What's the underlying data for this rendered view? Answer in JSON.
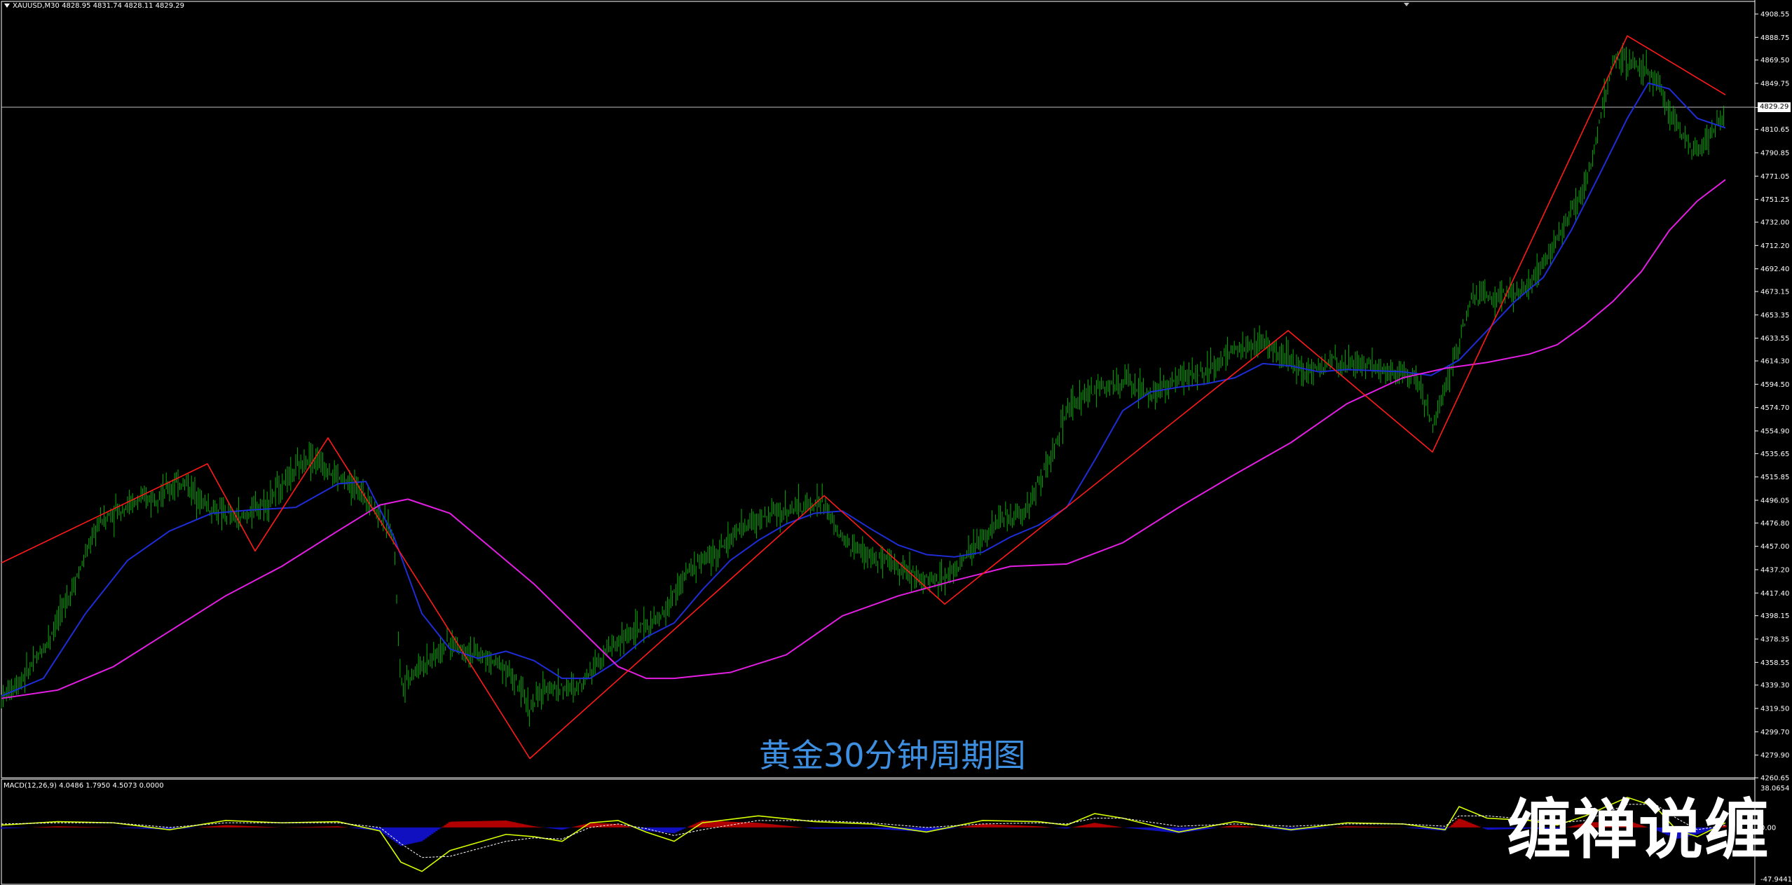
{
  "header": {
    "symbol_info": "XAUUSD,M30  4828.95 4831.74 4828.11 4829.29"
  },
  "macd_header": {
    "text": "MACD(12,26,9) 4.0486 1.7950 4.5073 0.0000"
  },
  "watermark": "黄金30分钟周期图",
  "brand": "缠禅说缠",
  "current_price": "4829.29",
  "macd_axis": {
    "top": "38.0654",
    "zero": "0.00",
    "bottom": "-47.9441"
  },
  "colors": {
    "background": "#000000",
    "candle_up": "#00b000",
    "candle_down": "#00b000",
    "ma_fast": "#1e2dd6",
    "ma_slow": "#e21ee2",
    "zigzag": "#ff1a1a",
    "macd_pos": "#b00000",
    "macd_neg": "#1010c0",
    "macd_line": "#d6ff00",
    "signal_line": "#ffffff"
  },
  "chart_data": {
    "type": "line",
    "title": "XAUUSD,M30",
    "y_ticks": [
      "4908.55",
      "4888.75",
      "4869.50",
      "4849.75",
      "4829.29",
      "4810.65",
      "4790.85",
      "4771.05",
      "4751.25",
      "4732.00",
      "4712.20",
      "4692.40",
      "4673.15",
      "4653.35",
      "4633.55",
      "4614.30",
      "4594.50",
      "4574.70",
      "4554.90",
      "4535.65",
      "4515.85",
      "4496.05",
      "4476.80",
      "4457.00",
      "4437.20",
      "4417.40",
      "4398.15",
      "4378.35",
      "4358.55",
      "4339.30",
      "4319.50",
      "4299.70",
      "4279.90",
      "4260.65"
    ],
    "ylim": [
      4260.65,
      4908.55
    ],
    "series": [
      {
        "name": "price",
        "x": [
          0,
          15,
          30,
          50,
          70,
          90,
          110,
          130,
          150,
          170,
          190,
          200,
          220,
          240,
          260,
          280,
          285,
          300,
          320,
          340,
          360,
          377,
          390,
          410,
          430,
          450,
          470,
          490,
          510,
          530,
          550,
          570,
          586,
          600,
          620,
          640,
          660,
          675,
          690,
          710,
          730,
          750,
          760,
          780,
          800,
          820,
          840,
          860,
          880,
          900,
          915,
          930,
          950,
          970,
          990,
          1010,
          1021,
          1035,
          1050,
          1070,
          1090,
          1110,
          1130,
          1150,
          1160,
          1175,
          1190,
          1200,
          1210,
          1230
        ],
        "values": [
          4328,
          4345,
          4370,
          4420,
          4478,
          4492,
          4500,
          4512,
          4488,
          4480,
          4495,
          4510,
          4533,
          4516,
          4500,
          4466,
          4340,
          4356,
          4375,
          4365,
          4355,
          4320,
          4338,
          4336,
          4368,
          4384,
          4395,
          4437,
          4452,
          4474,
          4485,
          4490,
          4495,
          4462,
          4448,
          4440,
          4428,
          4432,
          4450,
          4478,
          4486,
          4535,
          4572,
          4590,
          4598,
          4585,
          4600,
          4605,
          4625,
          4629,
          4620,
          4605,
          4613,
          4612,
          4608,
          4600,
          4560,
          4610,
          4670,
          4668,
          4676,
          4720,
          4760,
          4870,
          4868,
          4862,
          4825,
          4805,
          4792,
          4825
        ]
      },
      {
        "name": "MA fast",
        "x": [
          0,
          30,
          60,
          90,
          120,
          150,
          180,
          210,
          240,
          260,
          280,
          300,
          320,
          340,
          360,
          380,
          400,
          420,
          440,
          460,
          480,
          500,
          520,
          540,
          560,
          580,
          600,
          620,
          640,
          660,
          680,
          700,
          720,
          740,
          760,
          780,
          800,
          820,
          840,
          860,
          880,
          900,
          920,
          940,
          960,
          980,
          1000,
          1020,
          1040,
          1060,
          1080,
          1100,
          1120,
          1140,
          1160,
          1175,
          1190,
          1210,
          1230
        ],
        "values": [
          4330,
          4345,
          4400,
          4445,
          4470,
          4485,
          4488,
          4490,
          4510,
          4512,
          4465,
          4400,
          4370,
          4362,
          4368,
          4360,
          4345,
          4345,
          4360,
          4380,
          4392,
          4420,
          4445,
          4462,
          4476,
          4485,
          4487,
          4472,
          4458,
          4450,
          4448,
          4452,
          4465,
          4475,
          4490,
          4530,
          4572,
          4588,
          4592,
          4595,
          4600,
          4612,
          4610,
          4605,
          4607,
          4606,
          4605,
          4602,
          4615,
          4640,
          4665,
          4685,
          4725,
          4772,
          4820,
          4850,
          4845,
          4820,
          4812
        ]
      },
      {
        "name": "MA slow",
        "x": [
          0,
          40,
          80,
          120,
          160,
          200,
          240,
          270,
          290,
          320,
          350,
          380,
          410,
          440,
          460,
          480,
          520,
          560,
          600,
          640,
          680,
          720,
          760,
          800,
          840,
          880,
          920,
          960,
          1000,
          1030,
          1060,
          1090,
          1110,
          1130,
          1150,
          1170,
          1190,
          1210,
          1230
        ],
        "values": [
          4328,
          4335,
          4355,
          4385,
          4415,
          4440,
          4470,
          4492,
          4497,
          4485,
          4455,
          4425,
          4390,
          4355,
          4345,
          4345,
          4350,
          4365,
          4398,
          4415,
          4428,
          4440,
          4442,
          4460,
          4490,
          4518,
          4545,
          4578,
          4600,
          4608,
          4613,
          4620,
          4628,
          4645,
          4665,
          4690,
          4725,
          4750,
          4768
        ]
      },
      {
        "name": "ZigZag",
        "x": [
          0,
          147,
          181,
          233,
          377,
          587,
          673,
          918,
          1021,
          1160,
          1230
        ],
        "values": [
          4443,
          4527,
          4453,
          4549,
          4277,
          4500,
          4408,
          4640,
          4537,
          4890,
          4840
        ]
      }
    ],
    "macd": {
      "ylim": [
        -47.9441,
        38.0654
      ],
      "x": [
        0,
        40,
        80,
        120,
        160,
        200,
        240,
        270,
        285,
        300,
        320,
        360,
        380,
        400,
        420,
        440,
        460,
        480,
        500,
        540,
        580,
        620,
        660,
        700,
        740,
        760,
        780,
        800,
        840,
        880,
        920,
        960,
        1000,
        1030,
        1040,
        1060,
        1090,
        1110,
        1130,
        1160,
        1180,
        1195,
        1210,
        1230
      ],
      "macd_line": [
        2,
        5,
        4,
        -2,
        6,
        4,
        5,
        -3,
        -30,
        -38,
        -20,
        -6,
        -8,
        -12,
        4,
        6,
        -4,
        -12,
        4,
        10,
        5,
        3,
        -4,
        6,
        5,
        2,
        12,
        8,
        -4,
        5,
        -2,
        4,
        3,
        -2,
        18,
        8,
        6,
        2,
        10,
        26,
        18,
        -2,
        -8,
        4
      ],
      "signal_line": [
        3,
        4,
        4,
        0,
        4,
        4,
        4,
        0,
        -14,
        -26,
        -25,
        -12,
        -9,
        -10,
        0,
        3,
        -1,
        -7,
        -2,
        6,
        6,
        4,
        0,
        3,
        4,
        3,
        8,
        8,
        1,
        3,
        1,
        3,
        3,
        1,
        10,
        10,
        7,
        4,
        6,
        20,
        20,
        8,
        -2,
        2
      ],
      "histogram": [
        -1,
        1,
        0,
        -2,
        2,
        0,
        1,
        -3,
        -16,
        -12,
        5,
        6,
        1,
        -2,
        4,
        3,
        -3,
        -5,
        6,
        4,
        -1,
        -1,
        -4,
        3,
        1,
        -1,
        4,
        0,
        -5,
        2,
        -3,
        1,
        0,
        -3,
        8,
        -2,
        -1,
        -2,
        4,
        6,
        -2,
        -10,
        -6,
        2
      ]
    }
  }
}
